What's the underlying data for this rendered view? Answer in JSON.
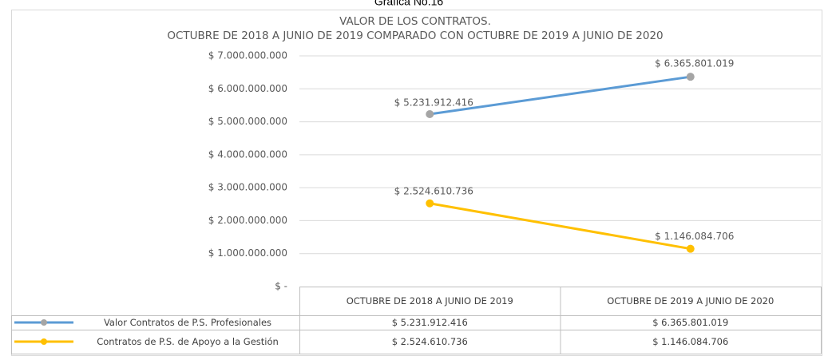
{
  "caption": "Gráfica No.16",
  "chart_data": {
    "type": "line",
    "title": "VALOR DE LOS CONTRATOS.",
    "subtitle": "OCTUBRE DE 2018 A JUNIO DE 2019 COMPARADO CON OCTUBRE DE 2019 A JUNIO DE 2020",
    "categories": [
      "OCTUBRE DE 2018 A JUNIO DE 2019",
      "OCTUBRE DE 2019 A JUNIO DE 2020"
    ],
    "series": [
      {
        "name": "Valor Contratos de P.S. Profesionales",
        "color": "#5b9bd5",
        "marker_color": "#a5a5a5",
        "values": [
          5231912416,
          6365801019
        ],
        "value_labels": [
          "$ 5.231.912.416",
          "$ 6.365.801.019"
        ]
      },
      {
        "name": "Contratos de P.S. de Apoyo a la Gestión",
        "color": "#ffc000",
        "marker_color": "#ffc000",
        "values": [
          2524610736,
          1146084706
        ],
        "value_labels": [
          "$ 2.524.610.736",
          "$ 1.146.084.706"
        ]
      }
    ],
    "ylim": [
      0,
      7000000000
    ],
    "yticks": [
      {
        "value": 0,
        "label": "$ -"
      },
      {
        "value": 1000000000,
        "label": "$ 1.000.000.000"
      },
      {
        "value": 2000000000,
        "label": "$ 2.000.000.000"
      },
      {
        "value": 3000000000,
        "label": "$ 3.000.000.000"
      },
      {
        "value": 4000000000,
        "label": "$ 4.000.000.000"
      },
      {
        "value": 5000000000,
        "label": "$ 5.000.000.000"
      },
      {
        "value": 6000000000,
        "label": "$ 6.000.000.000"
      },
      {
        "value": 7000000000,
        "label": "$ 7.000.000.000"
      }
    ],
    "grid": true,
    "data_table": true
  }
}
